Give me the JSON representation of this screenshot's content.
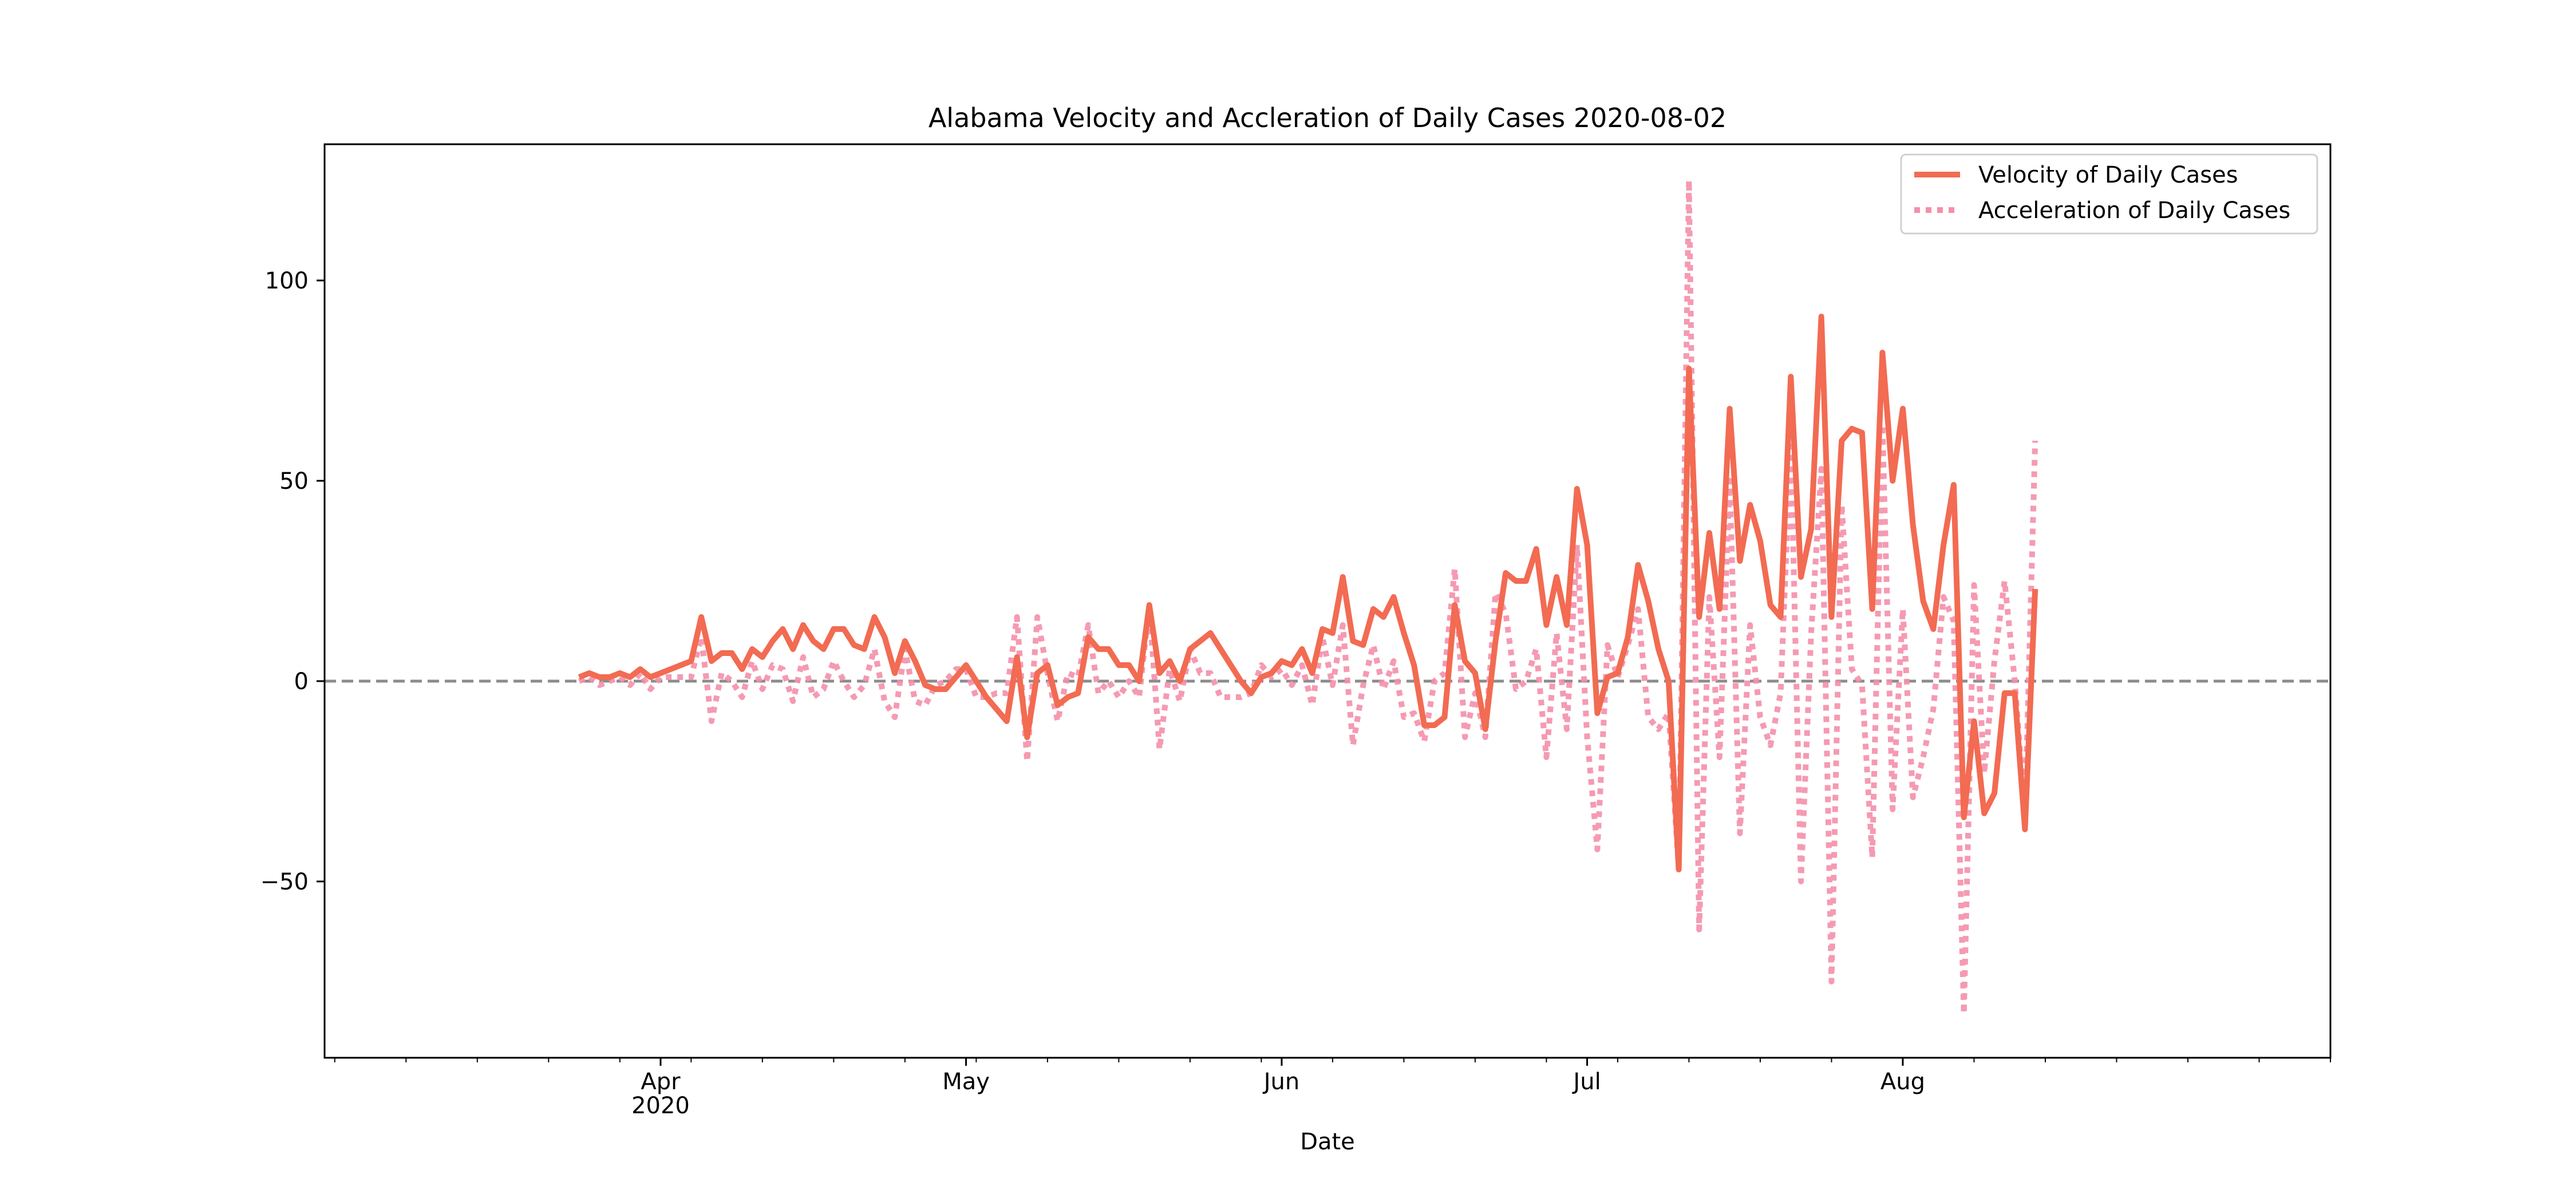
{
  "chart_data": {
    "type": "line",
    "title": "Alabama Velocity and Accleration of Daily Cases 2020-08-02",
    "xlabel": "Date",
    "ylabel": "",
    "x_start": "2020-03-13",
    "x_end": "2020-08-02",
    "xlim_days": [
      -25,
      172
    ],
    "ylim": [
      -94,
      134
    ],
    "yticks": [
      -50,
      0,
      50,
      100
    ],
    "ytick_labels": [
      "−50",
      "0",
      "50",
      "100"
    ],
    "xticks": [
      {
        "day": 8,
        "label": "Apr",
        "sublabel": "2020"
      },
      {
        "day": 38,
        "label": "May",
        "sublabel": ""
      },
      {
        "day": 69,
        "label": "Jun",
        "sublabel": ""
      },
      {
        "day": 99,
        "label": "Jul",
        "sublabel": ""
      },
      {
        "day": 130,
        "label": "Aug",
        "sublabel": ""
      }
    ],
    "zero_line": 0,
    "legend_position": "top-right",
    "series": [
      {
        "name": "Velocity of Daily Cases",
        "color": "#f26b52",
        "style": "solid",
        "values": [
          1,
          2,
          1,
          1,
          2,
          1,
          3,
          1,
          2,
          3,
          4,
          5,
          16,
          5,
          7,
          7,
          3,
          8,
          6,
          10,
          13,
          8,
          14,
          10,
          8,
          13,
          13,
          9,
          8,
          16,
          11,
          2,
          10,
          5,
          -1,
          -2,
          -2,
          1,
          4,
          0,
          -4,
          -7,
          -10,
          6,
          -14,
          2,
          4,
          -6,
          -4,
          -3,
          11,
          8,
          8,
          4,
          4,
          0,
          19,
          2,
          5,
          0,
          8,
          10,
          12,
          8,
          4,
          0,
          -3,
          1,
          2,
          5,
          4,
          8,
          2,
          13,
          12,
          26,
          10,
          9,
          18,
          16,
          21,
          12,
          4,
          -11,
          -11,
          -9,
          19,
          5,
          2,
          -12,
          10,
          27,
          25,
          25,
          33,
          14,
          26,
          14,
          48,
          34,
          -8,
          1,
          2,
          11,
          29,
          20,
          8,
          0,
          -47,
          78,
          16,
          37,
          18,
          68,
          30,
          44,
          35,
          19,
          16,
          76,
          26,
          38,
          91,
          16,
          60,
          63,
          62,
          18,
          82,
          50,
          68,
          39,
          20,
          13,
          34,
          49,
          -34,
          -10,
          -33,
          -28,
          -3,
          -3,
          -37,
          23
        ]
      },
      {
        "name": "Acceleration of Daily Cases",
        "color": "#f48faa",
        "style": "dotted",
        "values": [
          0,
          1,
          -1,
          0,
          1,
          -1,
          2,
          -2,
          1,
          1,
          1,
          1,
          11,
          -10,
          2,
          0,
          -4,
          5,
          -2,
          4,
          3,
          -5,
          6,
          -4,
          -2,
          5,
          0,
          -4,
          -1,
          8,
          -5,
          -9,
          8,
          -5,
          -6,
          -1,
          0,
          3,
          3,
          -4,
          -4,
          -3,
          -3,
          16,
          -20,
          16,
          2,
          -10,
          2,
          1,
          14,
          -3,
          0,
          -4,
          0,
          -4,
          19,
          -17,
          3,
          -5,
          8,
          2,
          2,
          -4,
          -4,
          -4,
          -3,
          4,
          1,
          3,
          -1,
          4,
          -6,
          11,
          -1,
          14,
          -16,
          -1,
          9,
          -2,
          5,
          -9,
          -8,
          -15,
          0,
          2,
          28,
          -14,
          -3,
          -14,
          22,
          17,
          -2,
          0,
          8,
          -19,
          12,
          -12,
          34,
          -14,
          -42,
          9,
          1,
          9,
          18,
          -9,
          -12,
          -8,
          -47,
          125,
          -62,
          21,
          -19,
          50,
          -38,
          14,
          -9,
          -16,
          -3,
          60,
          -50,
          12,
          53,
          -75,
          44,
          3,
          -1,
          -44,
          64,
          -32,
          18,
          -29,
          -19,
          -7,
          21,
          15,
          -83,
          24,
          -23,
          5,
          25,
          0,
          -34,
          60
        ]
      }
    ]
  }
}
